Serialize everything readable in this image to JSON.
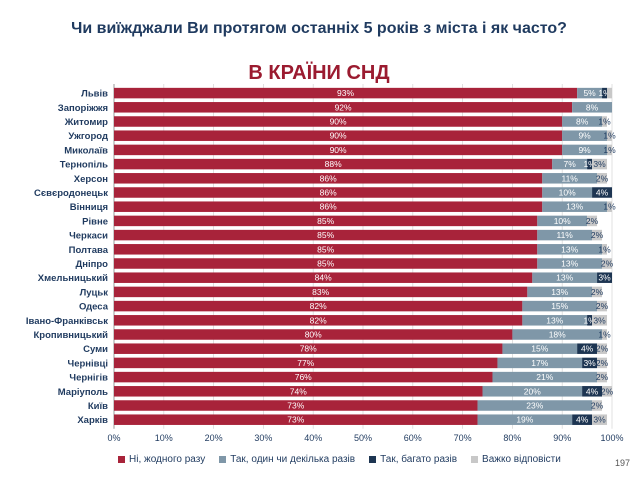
{
  "title": "Чи виїжджали Ви протягом останніх 5 років з міста і як часто?",
  "subtitle": "В КРАЇНИ СНД",
  "page_number": "197",
  "colors": {
    "never": "#a8233a",
    "once_or_several": "#7f97a8",
    "many": "#1d3552",
    "hard_to_say": "#c8c8c8"
  },
  "chart_data": {
    "type": "bar",
    "orientation": "horizontal",
    "stacked": true,
    "xlim": [
      0,
      100
    ],
    "x_ticks": [
      "0%",
      "10%",
      "20%",
      "30%",
      "40%",
      "50%",
      "60%",
      "70%",
      "80%",
      "90%",
      "100%"
    ],
    "categories": [
      "Львів",
      "Запоріжжя",
      "Житомир",
      "Ужгород",
      "Миколаїв",
      "Тернопіль",
      "Херсон",
      "Сєвєродонецьк",
      "Вінниця",
      "Рівне",
      "Черкаси",
      "Полтава",
      "Дніпро",
      "Хмельницький",
      "Луцьк",
      "Одеса",
      "Івано-Франківськ",
      "Кропивницький",
      "Суми",
      "Чернівці",
      "Чернігів",
      "Маріуполь",
      "Київ",
      "Харків"
    ],
    "series": [
      {
        "name": "Ні, жодного разу",
        "values": [
          93,
          92,
          90,
          90,
          90,
          88,
          86,
          86,
          86,
          85,
          85,
          85,
          85,
          84,
          83,
          82,
          82,
          80,
          78,
          77,
          76,
          74,
          73,
          73
        ],
        "labels": [
          "93%",
          "92%",
          "90%",
          "90%",
          "90%",
          "88%",
          "86%",
          "86%",
          "86%",
          "85%",
          "85%",
          "85%",
          "85%",
          "84%",
          "83%",
          "82%",
          "82%",
          "80%",
          "78%",
          "77%",
          "76%",
          "74%",
          "73%",
          "73%"
        ]
      },
      {
        "name": "Так, один чи декілька разів",
        "values": [
          5,
          8,
          8,
          9,
          9,
          7,
          11,
          10,
          13,
          10,
          11,
          13,
          13,
          13,
          13,
          15,
          13,
          18,
          15,
          17,
          21,
          20,
          23,
          19
        ],
        "labels": [
          "5%",
          "8%",
          "8%",
          "9%",
          "9%",
          "7%",
          "11%",
          "10%",
          "13%",
          "10%",
          "11%",
          "13%",
          "13%",
          "13%",
          "13%",
          "15%",
          "13%",
          "18%",
          "15%",
          "17%",
          "21%",
          "20%",
          "23%",
          "19%"
        ]
      },
      {
        "name": "Так, багато разів",
        "values": [
          1,
          0,
          0,
          0,
          0,
          1,
          0,
          4,
          0,
          0,
          0,
          0,
          0,
          3,
          0,
          0,
          1,
          0,
          4,
          3,
          0,
          4,
          0,
          4
        ],
        "labels": [
          "1%",
          "",
          "",
          "",
          "",
          "1%",
          "",
          "4%",
          "",
          "",
          "",
          "",
          "",
          "3%",
          "",
          "",
          "1%",
          "",
          "4%",
          "3%",
          "",
          "4%",
          "",
          "4%"
        ]
      },
      {
        "name": "Важко відповісти",
        "values": [
          1,
          0,
          1,
          1,
          1,
          3,
          2,
          0,
          1,
          2,
          2,
          1,
          2,
          0,
          2,
          2,
          3,
          1,
          2,
          2,
          2,
          2,
          2,
          3
        ],
        "labels": [
          "",
          "",
          "1%",
          "1%",
          "1%",
          "3%",
          "2%",
          "",
          "1%",
          "2%",
          "2%",
          "1%",
          "2%",
          "",
          "2%",
          "2%",
          "3%",
          "1%",
          "2%",
          "2%",
          "2%",
          "2%",
          "2%",
          "3%"
        ]
      }
    ],
    "legend_position": "bottom",
    "grid": true
  }
}
